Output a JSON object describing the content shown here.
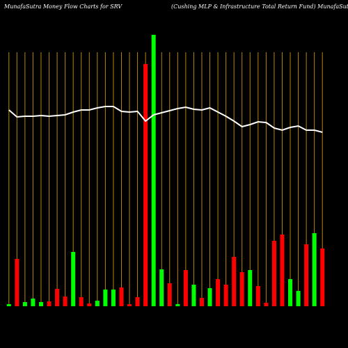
{
  "chart_data": {
    "type": "bar",
    "title": "MunafaSutra  Money Flow  Charts for SRV",
    "subtitle": "(Cushing MLP & Infrastructure   Total Return  Fund) MunafaSutra.com",
    "categories": [
      null,
      null,
      null,
      null,
      null,
      null,
      null,
      null,
      null,
      null,
      null,
      null,
      null,
      null,
      null,
      null,
      null,
      null,
      null,
      null,
      null,
      null,
      null,
      null,
      null,
      null,
      null,
      null,
      null,
      null,
      null,
      null,
      null,
      null,
      null,
      null,
      null,
      null,
      null,
      null
    ],
    "values": [
      3,
      68,
      6,
      11,
      6,
      7,
      25,
      14,
      78,
      13,
      4,
      8,
      24,
      24,
      27,
      3,
      13,
      348,
      390,
      53,
      33,
      3,
      52,
      31,
      12,
      26,
      39,
      31,
      71,
      49,
      52,
      29,
      5,
      94,
      103,
      39,
      22,
      89,
      105,
      83
    ],
    "bar_colors": [
      "#00ff00",
      "#ff0000",
      "#00ff00",
      "#00ff00",
      "#00ff00",
      "#ff0000",
      "#ff0000",
      "#ff0000",
      "#00ff00",
      "#ff0000",
      "#ff0000",
      "#00ff00",
      "#00ff00",
      "#00ff00",
      "#ff0000",
      "#ff0000",
      "#ff0000",
      "#ff0000",
      "#00ff00",
      "#00ff00",
      "#ff0000",
      "#00ff00",
      "#ff0000",
      "#00ff00",
      "#ff0000",
      "#00ff00",
      "#ff0000",
      "#ff0000",
      "#ff0000",
      "#ff0000",
      "#00ff00",
      "#ff0000",
      "#ff0000",
      "#ff0000",
      "#ff0000",
      "#00ff00",
      "#00ff00",
      "#ff0000",
      "#00ff00",
      "#ff0000"
    ],
    "line": {
      "color": "#ffffff",
      "values": [
        282,
        272,
        273,
        273,
        274,
        273,
        274,
        275,
        279,
        282,
        282,
        285,
        287,
        287,
        280,
        279,
        280,
        266,
        275,
        278,
        281,
        284,
        286,
        283,
        282,
        285,
        279,
        273,
        266,
        258,
        261,
        265,
        264,
        256,
        253,
        257,
        259,
        253,
        253,
        250
      ]
    },
    "ylim": [
      0,
      440
    ],
    "grid_color": "#b8860b"
  }
}
